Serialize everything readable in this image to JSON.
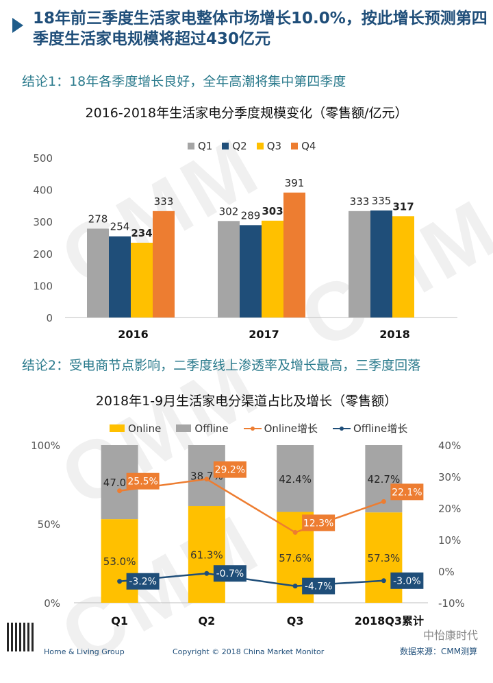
{
  "header": {
    "title": "18年前三季度生活家电整体市场增长10.0%，按此增长预测第四季度生活家电规模将超过430亿元"
  },
  "conclusion1": "结论1：18年各季度增长良好，全年高潮将集中第四季度",
  "conclusion2": "结论2：受电商节点影响，二季度线上渗透率及增长最高，三季度回落",
  "watermark": "CMM",
  "chart_data": [
    {
      "type": "bar",
      "title": "2016-2018年生活家电分季度规模变化（零售额/亿元）",
      "categories": [
        "2016",
        "2017",
        "2018"
      ],
      "series": [
        {
          "name": "Q1",
          "color": "#a5a5a5",
          "values": [
            278,
            302,
            333
          ]
        },
        {
          "name": "Q2",
          "color": "#1f4e79",
          "values": [
            254,
            289,
            335
          ]
        },
        {
          "name": "Q3",
          "color": "#ffc000",
          "values": [
            234,
            303,
            317
          ]
        },
        {
          "name": "Q4",
          "color": "#ed7d31",
          "values": [
            333,
            391,
            null
          ]
        }
      ],
      "bold_series": "Q3",
      "ylim": [
        0,
        500
      ],
      "yticks": [
        "0",
        "100",
        "200",
        "300",
        "400",
        "500"
      ]
    },
    {
      "type": "bar",
      "stacked": true,
      "title": "2018年1-9月生活家电分渠道占比及增长（零售额）",
      "categories": [
        "Q1",
        "Q2",
        "Q3",
        "2018Q3累计"
      ],
      "series": [
        {
          "name": "Online",
          "color": "#ffc000",
          "values": [
            53.0,
            61.3,
            57.6,
            57.3
          ],
          "labels": [
            "53.0%",
            "61.3%",
            "57.6%",
            "57.3%"
          ]
        },
        {
          "name": "Offline",
          "color": "#a5a5a5",
          "values": [
            47.0,
            38.7,
            42.4,
            42.7
          ],
          "labels": [
            "47.0%",
            "38.7%",
            "42.4%",
            "42.7%"
          ]
        }
      ],
      "lines": [
        {
          "name": "Online增长",
          "color": "#ed7d31",
          "values": [
            25.5,
            29.2,
            12.3,
            22.1
          ],
          "labels": [
            "25.5%",
            "29.2%",
            "12.3%",
            "22.1%"
          ]
        },
        {
          "name": "Offline增长",
          "color": "#1f4e79",
          "values": [
            -3.2,
            -0.7,
            -4.7,
            -3.0
          ],
          "labels": [
            "-3.2%",
            "-0.7%",
            "-4.7%",
            "-3.0%"
          ]
        }
      ],
      "ylim_left": [
        0,
        100
      ],
      "yticks_left": [
        "0%",
        "50%",
        "100%"
      ],
      "ylim_right": [
        -10,
        40
      ],
      "yticks_right": [
        "-10%",
        "0%",
        "10%",
        "20%",
        "30%",
        "40%"
      ]
    }
  ],
  "footer": {
    "left": "Home & Living Group",
    "mid": "Copyright © 2018 China Market Monitor",
    "source": "数据来源：CMM测算",
    "brand": "中怡康时代"
  }
}
